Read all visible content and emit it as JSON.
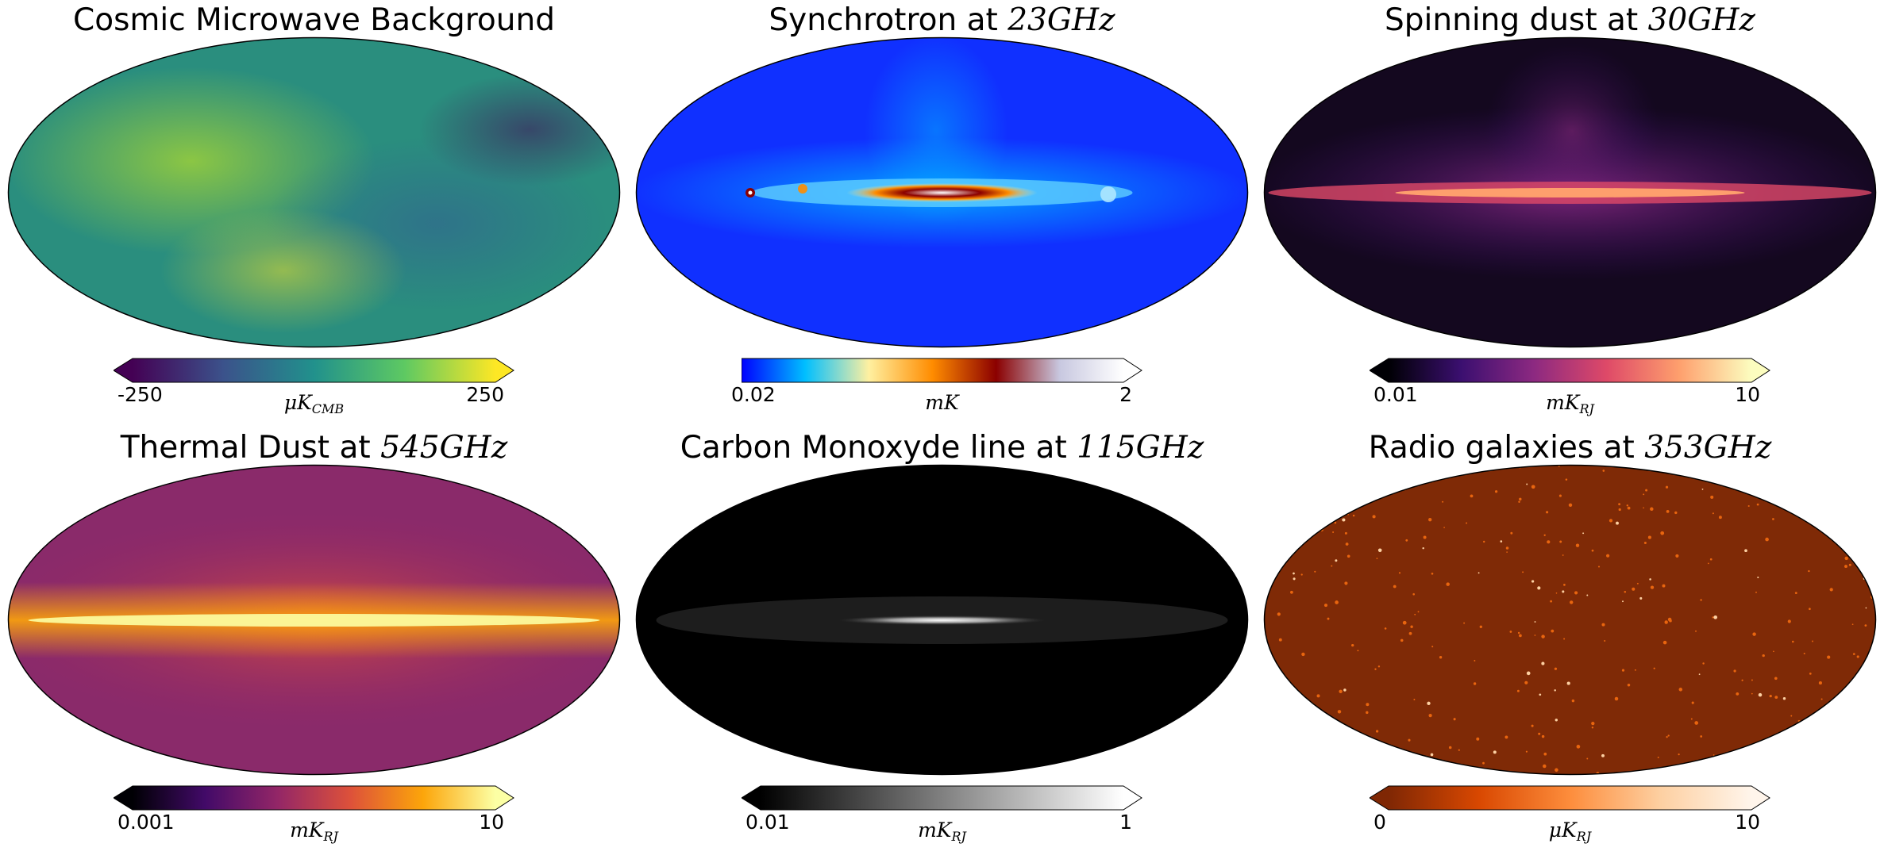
{
  "panels": [
    {
      "title": "Cosmic Microwave Background",
      "title_math": "",
      "cbar_min": "-250",
      "cbar_max": "250",
      "unit_main": "μK",
      "unit_sub": "CMB",
      "colormap": [
        "#440154",
        "#3b528b",
        "#21918c",
        "#5ec962",
        "#fde725"
      ],
      "left_arrow": true,
      "map_base": "#2a8e7e"
    },
    {
      "title": "Synchrotron at ",
      "title_math": "23GHz",
      "cbar_min": "0.02",
      "cbar_max": "2",
      "unit_main": "mK",
      "unit_sub": "",
      "colormap": [
        "#0000ff",
        "#00bfff",
        "#fff0a0",
        "#ff8c00",
        "#8b0000",
        "#c8c8e0",
        "#ffffff"
      ],
      "left_arrow": false,
      "map_base": "#1030ff"
    },
    {
      "title": "Spinning dust at ",
      "title_math": "30GHz",
      "cbar_min": "0.01",
      "cbar_max": "10",
      "unit_main": "mK",
      "unit_sub": "RJ",
      "colormap": [
        "#000004",
        "#3b0f70",
        "#8c2981",
        "#de4968",
        "#fe9f6d",
        "#fcfdbf"
      ],
      "left_arrow": true,
      "map_base": "#14081f"
    },
    {
      "title": "Thermal Dust at ",
      "title_math": "545GHz",
      "cbar_min": "0.001",
      "cbar_max": "10",
      "unit_main": "mK",
      "unit_sub": "RJ",
      "colormap": [
        "#000004",
        "#420a68",
        "#932667",
        "#dd513a",
        "#fca50a",
        "#fcffa4"
      ],
      "left_arrow": true,
      "map_base": "#8a2a6a"
    },
    {
      "title": "Carbon Monoxyde line at ",
      "title_math": "115GHz",
      "cbar_min": "0.01",
      "cbar_max": "1",
      "unit_main": "mK",
      "unit_sub": "RJ",
      "colormap": [
        "#000000",
        "#808080",
        "#ffffff"
      ],
      "left_arrow": true,
      "map_base": "#000000"
    },
    {
      "title": "Radio galaxies at ",
      "title_math": "353GHz",
      "cbar_min": "0",
      "cbar_max": "10",
      "unit_main": "μK",
      "unit_sub": "RJ",
      "colormap": [
        "#7f2704",
        "#d94801",
        "#fd8d3c",
        "#fdd0a2",
        "#fff5eb"
      ],
      "left_arrow": true,
      "map_base": "#7f2a06"
    }
  ]
}
